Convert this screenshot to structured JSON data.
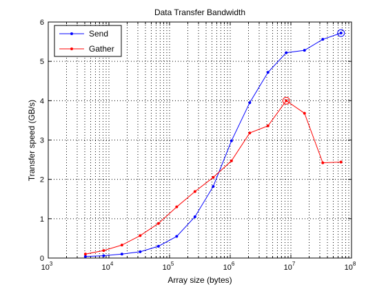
{
  "chart_data": {
    "type": "line",
    "title": "Data Transfer Bandwidth",
    "xlabel": "Array size (bytes)",
    "ylabel": "Transfer speed (GB/s)",
    "x_scale": "log",
    "xlim": [
      1000,
      100000000
    ],
    "ylim": [
      0,
      6
    ],
    "grid": true,
    "legend_position": "top-left",
    "x_ticks": [
      {
        "value": 1000,
        "base": "10",
        "exp": "3"
      },
      {
        "value": 10000,
        "base": "10",
        "exp": "4"
      },
      {
        "value": 100000,
        "base": "10",
        "exp": "5"
      },
      {
        "value": 1000000,
        "base": "10",
        "exp": "6"
      },
      {
        "value": 10000000,
        "base": "10",
        "exp": "7"
      },
      {
        "value": 100000000,
        "base": "10",
        "exp": "8"
      }
    ],
    "y_ticks": [
      {
        "value": 0,
        "label": "0"
      },
      {
        "value": 1,
        "label": "1"
      },
      {
        "value": 2,
        "label": "2"
      },
      {
        "value": 3,
        "label": "3"
      },
      {
        "value": 4,
        "label": "4"
      },
      {
        "value": 5,
        "label": "5"
      },
      {
        "value": 6,
        "label": "6"
      }
    ],
    "x": [
      4096,
      8192,
      16384,
      32768,
      65536,
      131072,
      262144,
      524288,
      1048576,
      2097152,
      4194304,
      8388608,
      16777216,
      33554432,
      67108864
    ],
    "series": [
      {
        "name": "Send",
        "color": "#0000ff",
        "values": [
          0.04,
          0.06,
          0.1,
          0.16,
          0.3,
          0.55,
          1.05,
          1.82,
          2.98,
          3.95,
          4.72,
          5.22,
          5.28,
          5.56,
          5.72
        ],
        "highlight_index": 14
      },
      {
        "name": "Gather",
        "color": "#ff0000",
        "values": [
          0.1,
          0.19,
          0.33,
          0.57,
          0.88,
          1.3,
          1.69,
          2.05,
          2.47,
          3.18,
          3.36,
          4.0,
          3.68,
          2.42,
          2.44
        ],
        "highlight_index": 11
      }
    ]
  }
}
